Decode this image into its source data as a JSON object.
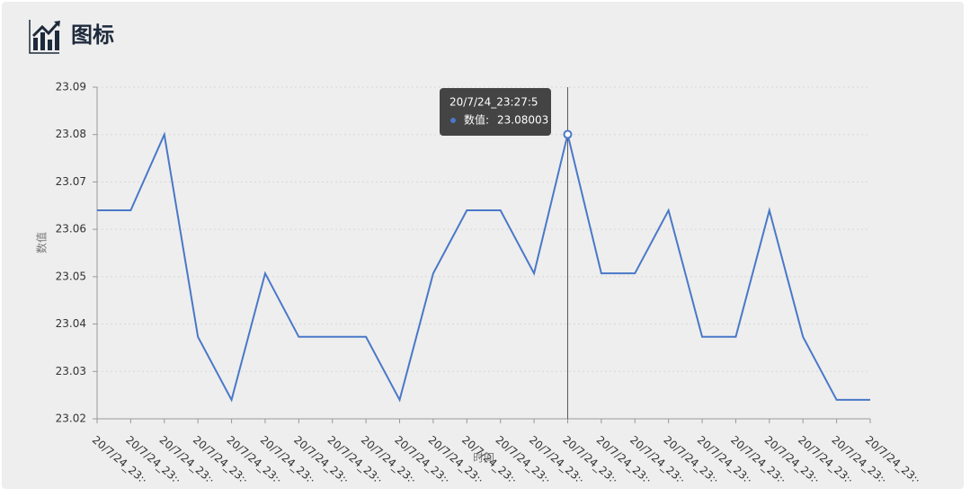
{
  "header": {
    "title": "图标"
  },
  "chart_data": {
    "type": "line",
    "y_label": "数值",
    "x_label": "时间",
    "categories": [
      "20/7/24_23:·",
      "20/7/24_23:·",
      "20/7/24_23:·",
      "20/7/24_23:·",
      "20/7/24_23:·",
      "20/7/24_23:·",
      "20/7/24_23:·",
      "20/7/24_23:·",
      "20/7/24_23:·",
      "20/7/24_23:·",
      "20/7/24_23:·",
      "20/7/24_23:·",
      "20/7/24_23:·",
      "20/7/24_23:·",
      "20/7/24_23:·",
      "20/7/24_23:·",
      "20/7/24_23:·",
      "20/7/24_23:·",
      "20/7/24_23:·",
      "20/7/24_23:·",
      "20/7/24_23:·",
      "20/7/24_23:·",
      "20/7/24_23:·",
      "20/7/24_23:·"
    ],
    "series": [
      {
        "name": "数值:",
        "color": "#4a78c8",
        "values": [
          23.064,
          23.064,
          23.08,
          23.0373,
          23.024,
          23.0507,
          23.0373,
          23.0373,
          23.0373,
          23.024,
          23.0507,
          23.064,
          23.064,
          23.0507,
          23.08003,
          23.0507,
          23.0507,
          23.064,
          23.0373,
          23.0373,
          23.064,
          23.0373,
          23.024,
          23.024
        ]
      }
    ],
    "ylim": [
      23.02,
      23.09
    ],
    "yticks": [
      23.02,
      23.03,
      23.04,
      23.05,
      23.06,
      23.07,
      23.08,
      23.09
    ],
    "grid": true,
    "tooltip": {
      "title": "20/7/24_23:27:5",
      "index": 14
    }
  }
}
